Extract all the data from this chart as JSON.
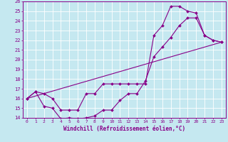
{
  "xlabel": "Windchill (Refroidissement éolien,°C)",
  "background_color": "#c5e8f0",
  "grid_color": "#ffffff",
  "line_color": "#880088",
  "xlim": [
    -0.5,
    23.5
  ],
  "ylim": [
    14,
    26
  ],
  "xticks": [
    0,
    1,
    2,
    3,
    4,
    5,
    6,
    7,
    8,
    9,
    10,
    11,
    12,
    13,
    14,
    15,
    16,
    17,
    18,
    19,
    20,
    21,
    22,
    23
  ],
  "yticks": [
    14,
    15,
    16,
    17,
    18,
    19,
    20,
    21,
    22,
    23,
    24,
    25,
    26
  ],
  "line1_x": [
    0,
    1,
    2,
    3,
    4,
    5,
    6,
    7,
    8,
    9,
    10,
    11,
    12,
    13,
    14,
    15,
    16,
    17,
    18,
    19,
    20,
    21,
    22,
    23
  ],
  "line1_y": [
    16,
    16.7,
    16.5,
    16.0,
    14.8,
    14.8,
    14.8,
    16.5,
    16.5,
    17.5,
    17.5,
    17.5,
    17.5,
    17.5,
    17.5,
    22.5,
    23.5,
    25.5,
    25.5,
    25.0,
    24.8,
    22.5,
    22.0,
    21.8
  ],
  "line2_x": [
    0,
    1,
    2,
    3,
    4,
    5,
    6,
    7,
    8,
    9,
    10,
    11,
    12,
    13,
    14,
    15,
    16,
    17,
    18,
    19,
    20,
    21,
    22,
    23
  ],
  "line2_y": [
    16,
    16.7,
    15.2,
    15.0,
    13.9,
    14.0,
    13.9,
    14.0,
    14.2,
    14.8,
    14.8,
    15.8,
    16.5,
    16.5,
    17.8,
    20.3,
    21.3,
    22.3,
    23.5,
    24.3,
    24.3,
    22.5,
    22.0,
    21.8
  ],
  "line3_x": [
    0,
    23
  ],
  "line3_y": [
    16,
    21.8
  ]
}
